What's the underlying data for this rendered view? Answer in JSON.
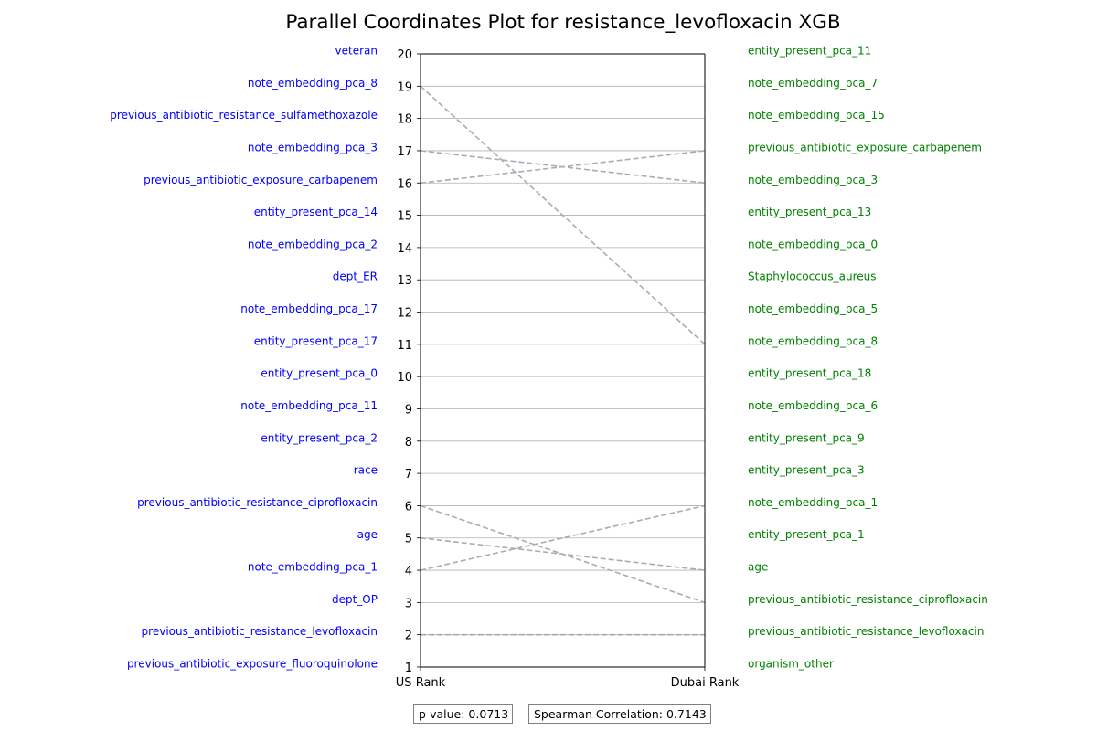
{
  "chart_data": {
    "type": "parallel_coordinates",
    "title": "Parallel Coordinates Plot for resistance_levofloxacin XGB",
    "axes": [
      "US Rank",
      "Dubai Rank"
    ],
    "ylim": [
      1,
      20
    ],
    "y_ticks": [
      1,
      2,
      3,
      4,
      5,
      6,
      7,
      8,
      9,
      10,
      11,
      12,
      13,
      14,
      15,
      16,
      17,
      18,
      19,
      20
    ],
    "grid": true,
    "left_labels_color": "#0000ff",
    "right_labels_color": "#008000",
    "line_color": "#a9abb5",
    "left_labels": [
      {
        "rank": 20,
        "label": "veteran"
      },
      {
        "rank": 19,
        "label": "note_embedding_pca_8"
      },
      {
        "rank": 18,
        "label": "previous_antibiotic_resistance_sulfamethoxazole"
      },
      {
        "rank": 17,
        "label": "note_embedding_pca_3"
      },
      {
        "rank": 16,
        "label": "previous_antibiotic_exposure_carbapenem"
      },
      {
        "rank": 15,
        "label": "entity_present_pca_14"
      },
      {
        "rank": 14,
        "label": "note_embedding_pca_2"
      },
      {
        "rank": 13,
        "label": "dept_ER"
      },
      {
        "rank": 12,
        "label": "note_embedding_pca_17"
      },
      {
        "rank": 11,
        "label": "entity_present_pca_17"
      },
      {
        "rank": 10,
        "label": "entity_present_pca_0"
      },
      {
        "rank": 9,
        "label": "note_embedding_pca_11"
      },
      {
        "rank": 8,
        "label": "entity_present_pca_2"
      },
      {
        "rank": 7,
        "label": "race"
      },
      {
        "rank": 6,
        "label": "previous_antibiotic_resistance_ciprofloxacin"
      },
      {
        "rank": 5,
        "label": "age"
      },
      {
        "rank": 4,
        "label": "note_embedding_pca_1"
      },
      {
        "rank": 3,
        "label": "dept_OP"
      },
      {
        "rank": 2,
        "label": "previous_antibiotic_resistance_levofloxacin"
      },
      {
        "rank": 1,
        "label": "previous_antibiotic_exposure_fluoroquinolone"
      }
    ],
    "right_labels": [
      {
        "rank": 20,
        "label": "entity_present_pca_11"
      },
      {
        "rank": 19,
        "label": "note_embedding_pca_7"
      },
      {
        "rank": 18,
        "label": "note_embedding_pca_15"
      },
      {
        "rank": 17,
        "label": "previous_antibiotic_exposure_carbapenem"
      },
      {
        "rank": 16,
        "label": "note_embedding_pca_3"
      },
      {
        "rank": 15,
        "label": "entity_present_pca_13"
      },
      {
        "rank": 14,
        "label": "note_embedding_pca_0"
      },
      {
        "rank": 13,
        "label": "Staphylococcus_aureus"
      },
      {
        "rank": 12,
        "label": "note_embedding_pca_5"
      },
      {
        "rank": 11,
        "label": "note_embedding_pca_8"
      },
      {
        "rank": 10,
        "label": "entity_present_pca_18"
      },
      {
        "rank": 9,
        "label": "note_embedding_pca_6"
      },
      {
        "rank": 8,
        "label": "entity_present_pca_9"
      },
      {
        "rank": 7,
        "label": "entity_present_pca_3"
      },
      {
        "rank": 6,
        "label": "note_embedding_pca_1"
      },
      {
        "rank": 5,
        "label": "entity_present_pca_1"
      },
      {
        "rank": 4,
        "label": "age"
      },
      {
        "rank": 3,
        "label": "previous_antibiotic_resistance_ciprofloxacin"
      },
      {
        "rank": 2,
        "label": "previous_antibiotic_resistance_levofloxacin"
      },
      {
        "rank": 1,
        "label": "organism_other"
      }
    ],
    "connections": [
      {
        "us_rank": 19,
        "dubai_rank": 11
      },
      {
        "us_rank": 17,
        "dubai_rank": 16
      },
      {
        "us_rank": 16,
        "dubai_rank": 17
      },
      {
        "us_rank": 6,
        "dubai_rank": 3
      },
      {
        "us_rank": 5,
        "dubai_rank": 4
      },
      {
        "us_rank": 4,
        "dubai_rank": 6
      },
      {
        "us_rank": 2,
        "dubai_rank": 2
      }
    ]
  },
  "stats": {
    "p_value": "p-value: 0.0713",
    "spearman": "Spearman Correlation: 0.7143"
  }
}
